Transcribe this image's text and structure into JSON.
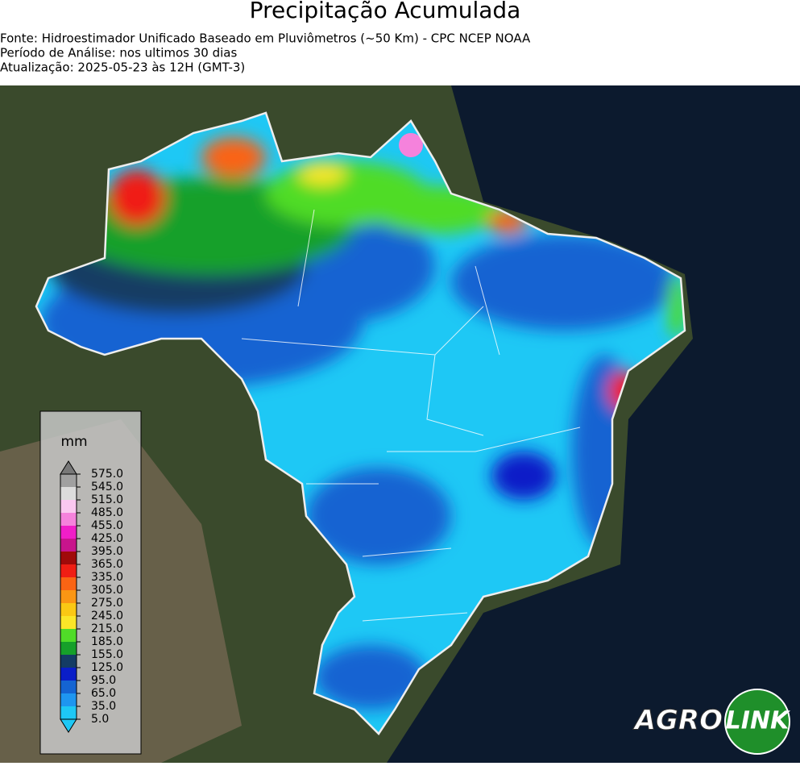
{
  "header": {
    "title": "Precipitação Acumulada",
    "lines": [
      "Fonte: Hidroestimador Unificado Baseado em Pluviômetros (~50 Km) - CPC NCEP NOAA",
      "Período de Análise: nos ultimos 30 dias",
      "Atualização: 2025-05-23 às 12H (GMT-3)"
    ]
  },
  "colorbar": {
    "unit": "mm",
    "ticks": [
      {
        "value": 5,
        "label": "5.0"
      },
      {
        "value": 35,
        "label": "35.0"
      },
      {
        "value": 65,
        "label": "65.0"
      },
      {
        "value": 95,
        "label": "95.0"
      },
      {
        "value": 125,
        "label": "125.0"
      },
      {
        "value": 155,
        "label": "155.0"
      },
      {
        "value": 185,
        "label": "185.0"
      },
      {
        "value": 215,
        "label": "215.0"
      },
      {
        "value": 245,
        "label": "245.0"
      },
      {
        "value": 275,
        "label": "275.0"
      },
      {
        "value": 305,
        "label": "305.0"
      },
      {
        "value": 335,
        "label": "335.0"
      },
      {
        "value": 365,
        "label": "365.0"
      },
      {
        "value": 395,
        "label": "395.0"
      },
      {
        "value": 425,
        "label": "425.0"
      },
      {
        "value": 455,
        "label": "455.0"
      },
      {
        "value": 485,
        "label": "485.0"
      },
      {
        "value": 515,
        "label": "515.0"
      },
      {
        "value": 545,
        "label": "545.0"
      },
      {
        "value": 575,
        "label": "575.0"
      }
    ],
    "colors": [
      "#1ec8f5",
      "#1e96f0",
      "#1464d2",
      "#0a1ec8",
      "#143c64",
      "#16a02a",
      "#50dc28",
      "#fae628",
      "#fac814",
      "#fa9614",
      "#fa6414",
      "#f01e14",
      "#a00a0a",
      "#c8148c",
      "#f01ec8",
      "#f582dc",
      "#fac8f0",
      "#dcdcdc",
      "#a0a0a0"
    ],
    "under_color": "#1ec8f5",
    "over_color": "#787878"
  },
  "logo": {
    "left": "AGRO",
    "right": "LINK"
  }
}
